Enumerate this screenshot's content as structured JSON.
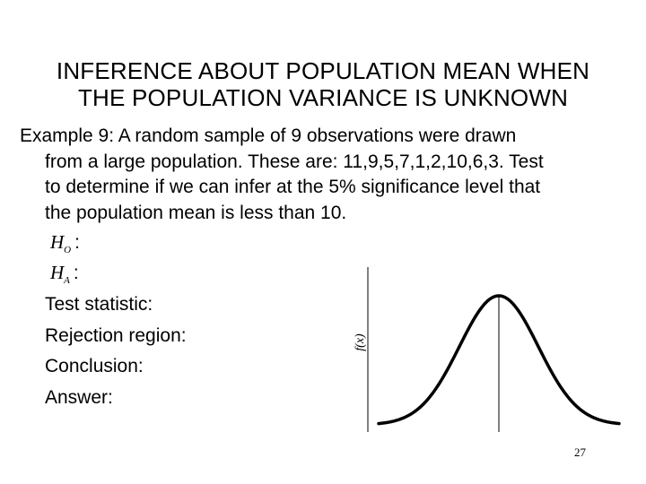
{
  "title": {
    "line1": "INFERENCE ABOUT POPULATION MEAN WHEN",
    "line2": "THE POPULATION VARIANCE IS UNKNOWN"
  },
  "example": {
    "label": "Example 9:",
    "lines": [
      " A random sample of 9 observations were drawn",
      "from a large population. These are: 11,9,5,7,1,2,10,6,3. Test",
      "to determine if we can infer at the 5% significance level that",
      "the population mean is less than 10."
    ]
  },
  "hypotheses": {
    "null_symbol": "H",
    "null_sub": "O",
    "alt_symbol": "H",
    "alt_sub": "A",
    "colon": ":"
  },
  "steps": [
    "Test statistic:",
    "Rejection region:",
    "Conclusion:",
    "Answer:"
  ],
  "graph": {
    "ylabel": "f(x)",
    "curve_color": "#000000"
  },
  "page_number": "27"
}
